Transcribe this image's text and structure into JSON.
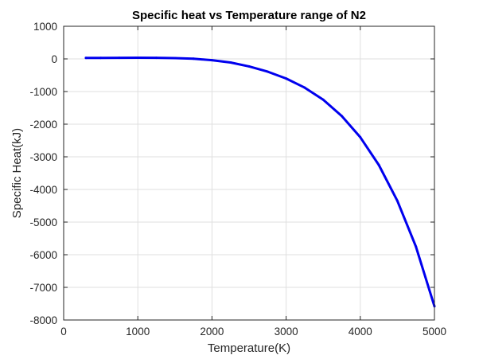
{
  "chart_data": {
    "type": "line",
    "title": "Specific heat vs Temperature range of N2",
    "xlabel": "Temperature(K)",
    "ylabel": "Specific Heat(kJ)",
    "xlim": [
      0,
      5000
    ],
    "ylim": [
      -8000,
      1000
    ],
    "xticks": [
      0,
      1000,
      2000,
      3000,
      4000,
      5000
    ],
    "yticks": [
      1000,
      0,
      -1000,
      -2000,
      -3000,
      -4000,
      -5000,
      -6000,
      -7000,
      -8000
    ],
    "grid": true,
    "legend": "none",
    "series": [
      {
        "color": "#0000ee",
        "x": [
          300,
          500,
          750,
          1000,
          1250,
          1500,
          1750,
          2000,
          2250,
          2500,
          2750,
          3000,
          3250,
          3500,
          3750,
          4000,
          4250,
          4500,
          4750,
          5000
        ],
        "y": [
          30,
          32,
          34,
          35,
          33,
          25,
          5,
          -40,
          -110,
          -230,
          -390,
          -600,
          -880,
          -1250,
          -1750,
          -2400,
          -3250,
          -4350,
          -5750,
          -7580
        ]
      }
    ]
  }
}
